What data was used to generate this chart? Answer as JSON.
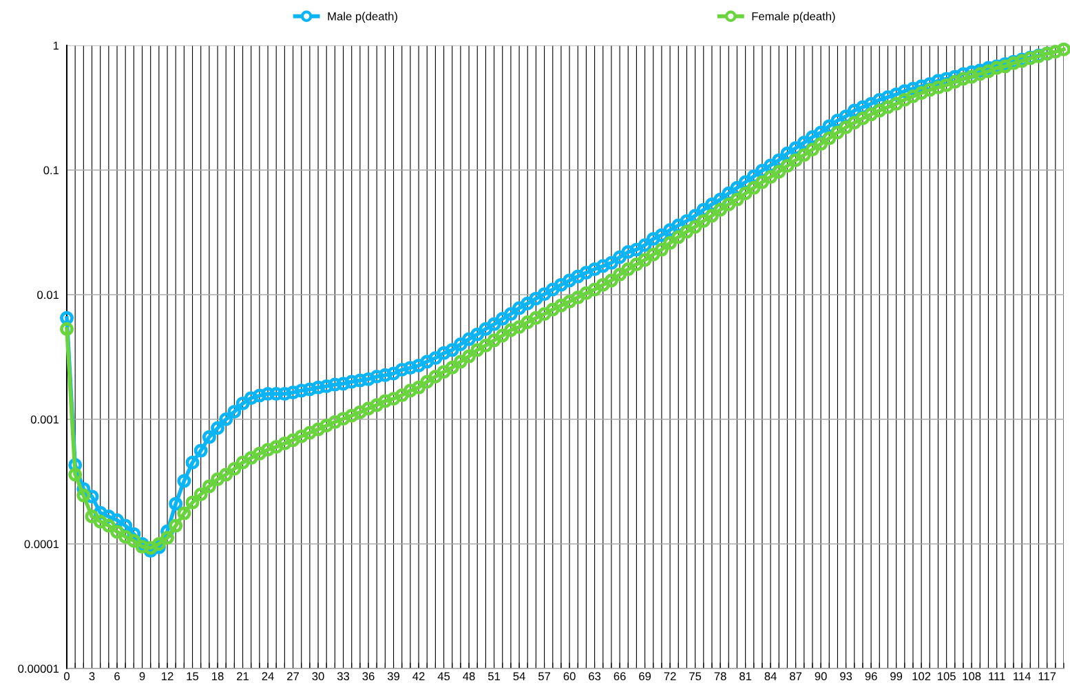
{
  "chart_data": {
    "type": "line",
    "categories": [
      "0",
      null,
      null,
      "3",
      null,
      null,
      "6",
      null,
      null,
      "9",
      null,
      null,
      "12",
      null,
      null,
      "15",
      null,
      null,
      "18",
      null,
      null,
      "21",
      null,
      null,
      "24",
      null,
      null,
      "27",
      null,
      null,
      "30",
      null,
      null,
      "33",
      null,
      null,
      "36",
      null,
      null,
      "39",
      null,
      null,
      "42",
      null,
      null,
      "45",
      null,
      null,
      "48",
      null,
      null,
      "51",
      null,
      null,
      "54",
      null,
      null,
      "57",
      null,
      null,
      "60",
      null,
      null,
      "63",
      null,
      null,
      "66",
      null,
      null,
      "69",
      null,
      null,
      "72",
      null,
      null,
      "75",
      null,
      null,
      "78",
      null,
      null,
      "81",
      null,
      null,
      "84",
      null,
      null,
      "87",
      null,
      null,
      "90",
      null,
      null,
      "93",
      null,
      null,
      "96",
      null,
      null,
      "99",
      null,
      null,
      "102",
      null,
      null,
      "105",
      null,
      null,
      "108",
      null,
      null,
      "111",
      null,
      null,
      "114",
      null,
      null,
      "117",
      null,
      null
    ],
    "series": [
      {
        "name": "Male p(death)",
        "color": "#0bb4f5",
        "values": [
          0.0065,
          0.00043,
          0.000276,
          0.00024,
          0.000178,
          0.000166,
          0.000155,
          0.00014,
          0.00012,
          0.0001,
          8.8e-05,
          9.4e-05,
          0.000126,
          0.00021,
          0.00032,
          0.00045,
          0.00056,
          0.00072,
          0.00085,
          0.001,
          0.00115,
          0.00134,
          0.00148,
          0.00155,
          0.0016,
          0.0016,
          0.0016,
          0.00164,
          0.0017,
          0.00174,
          0.0018,
          0.00184,
          0.0019,
          0.00193,
          0.002,
          0.00205,
          0.0021,
          0.0022,
          0.00226,
          0.00233,
          0.0025,
          0.00259,
          0.0027,
          0.0029,
          0.0031,
          0.0034,
          0.0036,
          0.004,
          0.0044,
          0.0048,
          0.0053,
          0.0058,
          0.0064,
          0.007,
          0.0078,
          0.0085,
          0.0093,
          0.0101,
          0.011,
          0.012,
          0.013,
          0.014,
          0.015,
          0.016,
          0.017,
          0.018,
          0.02,
          0.022,
          0.023,
          0.025,
          0.028,
          0.03,
          0.033,
          0.036,
          0.039,
          0.043,
          0.048,
          0.053,
          0.058,
          0.065,
          0.072,
          0.08,
          0.089,
          0.099,
          0.109,
          0.12,
          0.136,
          0.15,
          0.166,
          0.184,
          0.2,
          0.225,
          0.25,
          0.27,
          0.3,
          0.32,
          0.34,
          0.366,
          0.385,
          0.405,
          0.43,
          0.45,
          0.47,
          0.49,
          0.52,
          0.54,
          0.56,
          0.59,
          0.61,
          0.63,
          0.66,
          0.68,
          0.71,
          0.74,
          0.77,
          0.8,
          0.83,
          0.86,
          null,
          null
        ]
      },
      {
        "name": "Female p(death)",
        "color": "#6ad43f",
        "values": [
          0.0053,
          0.00036,
          0.000245,
          0.000166,
          0.000151,
          0.00014,
          0.000125,
          0.000114,
          0.000106,
          9.5e-05,
          9.3e-05,
          0.0001,
          0.000112,
          0.00014,
          0.000176,
          0.000215,
          0.00025,
          0.00029,
          0.00033,
          0.00036,
          0.0004,
          0.00045,
          0.00049,
          0.00053,
          0.00057,
          0.0006,
          0.00064,
          0.00068,
          0.00073,
          0.00078,
          0.00083,
          0.00089,
          0.00095,
          0.00101,
          0.00107,
          0.00114,
          0.00122,
          0.0013,
          0.0014,
          0.00146,
          0.00156,
          0.0017,
          0.0018,
          0.002,
          0.0022,
          0.0024,
          0.0026,
          0.0029,
          0.0032,
          0.0036,
          0.0039,
          0.0043,
          0.0047,
          0.0052,
          0.0055,
          0.006,
          0.0065,
          0.007,
          0.0076,
          0.0082,
          0.0088,
          0.0095,
          0.0103,
          0.011,
          0.012,
          0.013,
          0.0145,
          0.016,
          0.0175,
          0.019,
          0.021,
          0.023,
          0.026,
          0.029,
          0.032,
          0.035,
          0.039,
          0.043,
          0.048,
          0.053,
          0.058,
          0.065,
          0.072,
          0.08,
          0.088,
          0.097,
          0.108,
          0.12,
          0.132,
          0.146,
          0.162,
          0.18,
          0.2,
          0.22,
          0.24,
          0.26,
          0.28,
          0.3,
          0.32,
          0.34,
          0.366,
          0.39,
          0.415,
          0.44,
          0.46,
          0.48,
          0.51,
          0.54,
          0.56,
          0.59,
          0.62,
          0.66,
          0.68,
          0.72,
          0.75,
          0.79,
          0.82,
          0.86,
          0.89,
          0.93
        ]
      }
    ],
    "log": "y",
    "ylim": [
      1e-05,
      1
    ],
    "yticks": [
      {
        "value": 1e-05,
        "label": "0.00001"
      },
      {
        "value": 0.0001,
        "label": "0.0001"
      },
      {
        "value": 0.001,
        "label": "0.001"
      },
      {
        "value": 0.01,
        "label": "0.01"
      },
      {
        "value": 0.1,
        "label": "0.1"
      },
      {
        "value": 1,
        "label": "1"
      }
    ],
    "grid": true,
    "legend": "top",
    "marker": "circle",
    "line_style": "solid"
  }
}
